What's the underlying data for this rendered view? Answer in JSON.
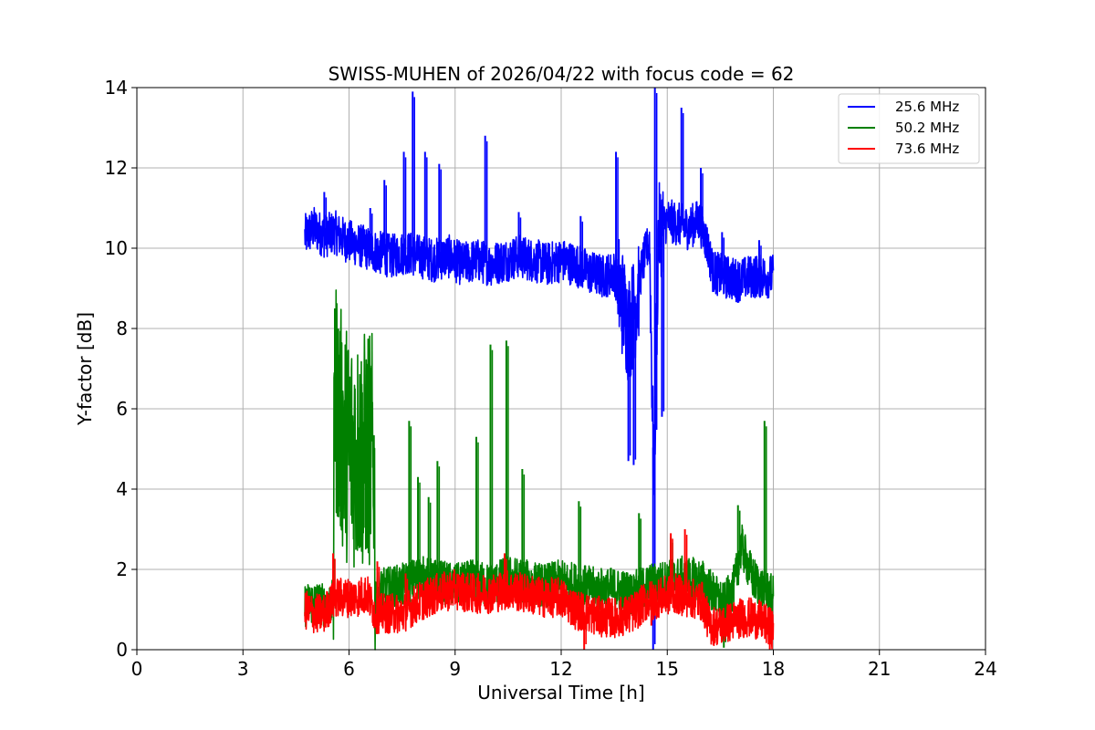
{
  "chart_data": {
    "type": "line",
    "title": "SWISS-MUHEN of 2026/04/22 with focus code = 62",
    "xlabel": "Universal Time [h]",
    "ylabel": "Y-factor [dB]",
    "xlim": [
      0,
      24
    ],
    "ylim": [
      0,
      14
    ],
    "xticks": [
      "0",
      "3",
      "6",
      "9",
      "12",
      "15",
      "18",
      "21",
      "24"
    ],
    "yticks": [
      "0",
      "2",
      "4",
      "6",
      "8",
      "10",
      "12",
      "14"
    ],
    "grid": true,
    "legend_position": "top-right",
    "series": [
      {
        "name": "25.6 MHz",
        "color": "#0000ff",
        "x": [
          4.75,
          5.0,
          5.3,
          5.6,
          5.9,
          6.2,
          6.5,
          6.8,
          7.2,
          7.6,
          8.0,
          8.4,
          8.8,
          9.2,
          9.6,
          10.0,
          10.4,
          10.8,
          11.2,
          11.6,
          12.0,
          12.4,
          12.8,
          13.2,
          13.5,
          13.75,
          13.9,
          14.05,
          14.3,
          14.5,
          14.62,
          14.75,
          15.0,
          15.3,
          15.6,
          15.9,
          16.1,
          16.3,
          16.6,
          17.0,
          17.4,
          17.8,
          18.0
        ],
        "y": [
          10.3,
          10.5,
          10.3,
          10.4,
          10.2,
          10.1,
          10.0,
          9.9,
          9.8,
          9.9,
          9.8,
          9.7,
          9.8,
          9.6,
          9.7,
          9.6,
          9.7,
          9.8,
          9.7,
          9.6,
          9.7,
          9.6,
          9.4,
          9.3,
          9.4,
          8.6,
          8.0,
          8.4,
          9.6,
          10.2,
          4.0,
          10.4,
          10.7,
          10.6,
          10.5,
          10.7,
          10.2,
          9.4,
          9.3,
          9.2,
          9.3,
          9.3,
          9.3
        ],
        "spikes": [
          {
            "x": 5.3,
            "y": 11.4
          },
          {
            "x": 6.6,
            "y": 11.0
          },
          {
            "x": 7.0,
            "y": 11.7
          },
          {
            "x": 7.55,
            "y": 12.4
          },
          {
            "x": 7.8,
            "y": 13.9
          },
          {
            "x": 8.15,
            "y": 12.4
          },
          {
            "x": 8.55,
            "y": 12.1
          },
          {
            "x": 9.85,
            "y": 12.8
          },
          {
            "x": 10.8,
            "y": 10.9
          },
          {
            "x": 12.55,
            "y": 10.8
          },
          {
            "x": 13.55,
            "y": 12.4
          },
          {
            "x": 13.9,
            "y": 4.7
          },
          {
            "x": 14.05,
            "y": 4.6
          },
          {
            "x": 14.6,
            "y": 0.0
          },
          {
            "x": 14.65,
            "y": 14.0
          },
          {
            "x": 14.85,
            "y": 5.8
          },
          {
            "x": 15.4,
            "y": 13.5
          },
          {
            "x": 15.95,
            "y": 12.0
          },
          {
            "x": 16.55,
            "y": 10.4
          },
          {
            "x": 17.6,
            "y": 10.2
          }
        ]
      },
      {
        "name": "50.2 MHz",
        "color": "#008000",
        "x": [
          4.75,
          5.0,
          5.3,
          5.55,
          5.6,
          5.75,
          5.9,
          6.1,
          6.3,
          6.5,
          6.7,
          6.75,
          7.0,
          7.5,
          8.0,
          8.5,
          9.0,
          9.5,
          10.0,
          10.5,
          11.0,
          11.5,
          12.0,
          12.5,
          13.0,
          13.5,
          14.0,
          14.5,
          15.0,
          15.5,
          16.0,
          16.3,
          16.6,
          16.9,
          17.1,
          17.4,
          17.7,
          18.0
        ],
        "y": [
          1.1,
          1.2,
          1.1,
          1.2,
          6.5,
          5.6,
          5.2,
          5.0,
          4.9,
          5.0,
          4.9,
          1.4,
          1.5,
          1.6,
          1.8,
          1.7,
          1.6,
          1.7,
          1.6,
          1.8,
          1.7,
          1.6,
          1.7,
          1.6,
          1.5,
          1.5,
          1.4,
          1.6,
          1.7,
          1.8,
          1.7,
          1.4,
          1.1,
          1.6,
          2.6,
          1.8,
          1.5,
          1.3
        ],
        "spikes": [
          {
            "x": 5.6,
            "y": 8.5
          },
          {
            "x": 5.7,
            "y": 3.3
          },
          {
            "x": 6.4,
            "y": 2.9
          },
          {
            "x": 7.7,
            "y": 5.7
          },
          {
            "x": 7.95,
            "y": 4.3
          },
          {
            "x": 8.5,
            "y": 4.7
          },
          {
            "x": 8.25,
            "y": 3.8
          },
          {
            "x": 9.6,
            "y": 5.3
          },
          {
            "x": 10.0,
            "y": 7.6
          },
          {
            "x": 10.45,
            "y": 7.7
          },
          {
            "x": 10.9,
            "y": 4.5
          },
          {
            "x": 12.5,
            "y": 3.7
          },
          {
            "x": 14.2,
            "y": 3.4
          },
          {
            "x": 15.1,
            "y": 2.8
          },
          {
            "x": 16.6,
            "y": 0.05
          },
          {
            "x": 17.0,
            "y": 3.6
          },
          {
            "x": 17.75,
            "y": 5.7
          }
        ]
      },
      {
        "name": "73.6 MHz",
        "color": "#ff0000",
        "x": [
          4.75,
          5.0,
          5.3,
          5.6,
          5.9,
          6.2,
          6.5,
          6.75,
          7.0,
          7.5,
          8.0,
          8.5,
          9.0,
          9.5,
          10.0,
          10.5,
          11.0,
          11.5,
          12.0,
          12.4,
          12.8,
          13.2,
          13.6,
          14.0,
          14.4,
          14.8,
          15.2,
          15.6,
          16.0,
          16.2,
          16.5,
          16.8,
          17.1,
          17.4,
          17.7,
          18.0
        ],
        "y": [
          1.0,
          0.9,
          0.9,
          1.3,
          1.3,
          1.3,
          1.4,
          0.9,
          0.9,
          0.9,
          1.2,
          1.4,
          1.5,
          1.4,
          1.4,
          1.5,
          1.4,
          1.3,
          1.3,
          1.0,
          0.9,
          0.8,
          0.8,
          0.9,
          1.2,
          1.3,
          1.4,
          1.3,
          1.2,
          0.6,
          0.6,
          0.7,
          0.8,
          0.8,
          0.7,
          0.5
        ],
        "spikes": [
          {
            "x": 5.55,
            "y": 2.4
          },
          {
            "x": 6.8,
            "y": 2.2
          },
          {
            "x": 7.6,
            "y": 1.9
          },
          {
            "x": 9.5,
            "y": 1.9
          },
          {
            "x": 10.4,
            "y": 2.4
          },
          {
            "x": 12.65,
            "y": 0.0
          },
          {
            "x": 14.55,
            "y": 0.6
          },
          {
            "x": 15.1,
            "y": 2.9
          },
          {
            "x": 15.5,
            "y": 3.0
          },
          {
            "x": 16.55,
            "y": 0.2
          },
          {
            "x": 17.9,
            "y": 0.0
          }
        ]
      }
    ]
  }
}
